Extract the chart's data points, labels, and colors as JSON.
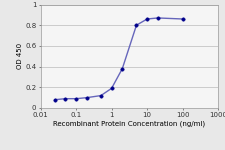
{
  "x": [
    0.025,
    0.05,
    0.1,
    0.2,
    0.5,
    1,
    2,
    5,
    10,
    20,
    100
  ],
  "y": [
    0.08,
    0.09,
    0.09,
    0.1,
    0.12,
    0.19,
    0.38,
    0.8,
    0.86,
    0.87,
    0.86
  ],
  "line_color": "#6666bb",
  "marker_color": "#00008b",
  "marker_style": "o",
  "marker_size": 2.5,
  "line_width": 1.0,
  "xlabel": "Recombinant Protein Concentration (ng/ml)",
  "ylabel": "OD 450",
  "xlim": [
    0.01,
    1000
  ],
  "ylim": [
    0,
    1.0
  ],
  "yticks": [
    0,
    0.2,
    0.4,
    0.6,
    0.8,
    1
  ],
  "ytick_labels": [
    "0",
    "0.2",
    "0.4",
    "0.6",
    "0.8",
    "1"
  ],
  "xtick_labels": [
    "0.01",
    "0.1",
    "1",
    "10",
    "100",
    "1000"
  ],
  "xtick_positions": [
    0.01,
    0.1,
    1,
    10,
    100,
    1000
  ],
  "background_color": "#e8e8e8",
  "plot_bg_color": "#f5f5f5",
  "grid_color": "#bbbbbb",
  "xlabel_fontsize": 5.0,
  "ylabel_fontsize": 5.0,
  "tick_fontsize": 5.0
}
